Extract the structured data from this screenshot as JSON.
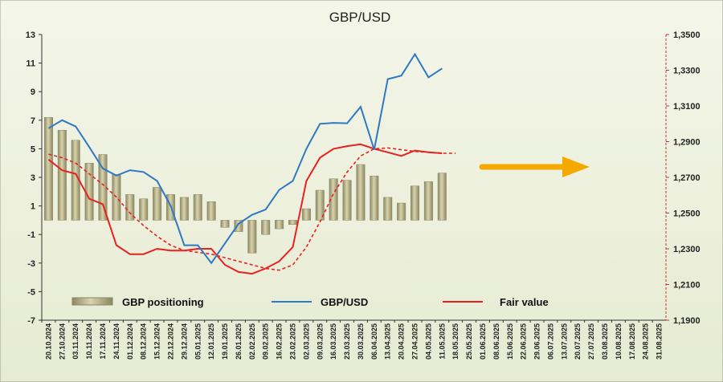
{
  "chart_data": {
    "type": "bar+line",
    "title": "GBP/USD",
    "x_dates": [
      "20.10.2024",
      "27.10.2024",
      "03.11.2024",
      "10.11.2024",
      "17.11.2024",
      "24.11.2024",
      "01.12.2024",
      "08.12.2024",
      "15.12.2024",
      "22.12.2024",
      "29.12.2024",
      "05.01.2025",
      "12.01.2025",
      "19.01.2025",
      "26.01.2025",
      "02.02.2025",
      "09.02.2025",
      "16.02.2025",
      "23.02.2025",
      "02.03.2025",
      "09.03.2025",
      "16.03.2025",
      "23.03.2025",
      "30.03.2025",
      "06.04.2025",
      "13.04.2025",
      "20.04.2025",
      "27.04.2025",
      "04.05.2025",
      "11.05.2025",
      "18.05.2025",
      "25.05.2025",
      "01.06.2025",
      "08.06.2025",
      "15.06.2025",
      "22.06.2025",
      "29.06.2025",
      "06.07.2025",
      "13.07.2025",
      "20.07.2025",
      "27.07.2025",
      "03.08.2025",
      "10.08.2025",
      "17.08.2025",
      "24.08.2025",
      "31.08.2025"
    ],
    "y_left": {
      "min": -7,
      "max": 13,
      "ticks": [
        "13",
        "11",
        "9",
        "7",
        "5",
        "3",
        "1",
        "-1",
        "-3",
        "-5",
        "-7"
      ]
    },
    "y_right": {
      "min": 1.19,
      "max": 1.35,
      "ticks": [
        "1,3500",
        "1,3300",
        "1,3100",
        "1,2900",
        "1,2700",
        "1,2500",
        "1,2300",
        "1,2100",
        "1,1900"
      ]
    },
    "series": [
      {
        "name": "GBP positioning",
        "type": "bar",
        "axis": "left",
        "color": "#b9b48a",
        "values": [
          7.2,
          6.3,
          5.6,
          4.0,
          4.6,
          3.2,
          1.8,
          1.5,
          2.3,
          1.8,
          1.6,
          1.8,
          1.3,
          -0.5,
          -0.8,
          -2.3,
          -1.0,
          -0.6,
          -0.3,
          0.8,
          2.1,
          2.9,
          2.8,
          3.9,
          3.1,
          1.6,
          1.2,
          2.4,
          2.7,
          3.3
        ]
      },
      {
        "name": "GBP/USD",
        "type": "line",
        "axis": "right",
        "color": "#2f78c4",
        "values": [
          1.2975,
          1.302,
          1.2985,
          1.287,
          1.275,
          1.271,
          1.274,
          1.273,
          1.268,
          1.254,
          1.232,
          1.232,
          1.222,
          1.233,
          1.244,
          1.249,
          1.252,
          1.263,
          1.268,
          1.286,
          1.3,
          1.3005,
          1.3003,
          1.3095,
          1.2855,
          1.325,
          1.327,
          1.339,
          1.326,
          1.331
        ]
      },
      {
        "name": "Fair value",
        "type": "line",
        "axis": "right",
        "color": "#e82020",
        "values": [
          1.28,
          1.274,
          1.272,
          1.258,
          1.255,
          1.232,
          1.227,
          1.227,
          1.23,
          1.229,
          1.229,
          1.23,
          1.23,
          1.221,
          1.217,
          1.216,
          1.219,
          1.223,
          1.231,
          1.268,
          1.281,
          1.286,
          1.2875,
          1.2885,
          1.286,
          1.284,
          1.282,
          1.285,
          1.284,
          1.2835
        ]
      },
      {
        "name": "Fair value trend",
        "type": "dashed-line",
        "axis": "right",
        "color": "#e82020",
        "values": [
          1.283,
          1.281,
          1.278,
          1.272,
          1.266,
          1.259,
          1.25,
          1.243,
          1.237,
          1.232,
          1.229,
          1.228,
          1.227,
          1.225,
          1.223,
          1.221,
          1.219,
          1.218,
          1.221,
          1.231,
          1.245,
          1.261,
          1.273,
          1.282,
          1.286,
          1.2865,
          1.2855,
          1.2845,
          1.284,
          1.2835,
          1.2835
        ]
      }
    ],
    "annotations": [
      {
        "type": "arrow",
        "color": "#f5a800",
        "direction": "right"
      }
    ],
    "grid": false,
    "legend": [
      "GBP positioning",
      "GBP/USD",
      "Fair value"
    ]
  }
}
